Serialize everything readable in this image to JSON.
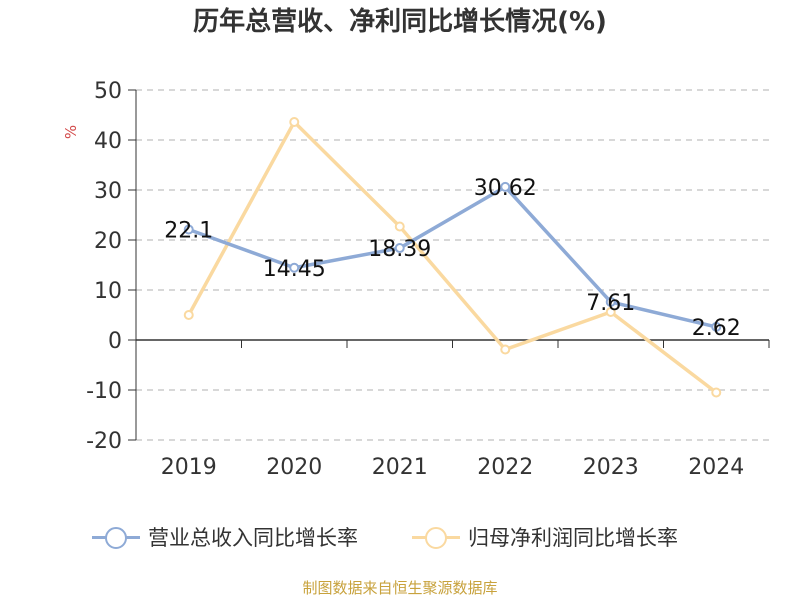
{
  "chart_data": {
    "type": "line",
    "title": "历年总营收、净利同比增长情况(%)",
    "ylabel": "%",
    "categories": [
      "2019",
      "2020",
      "2021",
      "2022",
      "2023",
      "2024"
    ],
    "ylim": [
      -20,
      50
    ],
    "yticks": [
      50,
      40,
      30,
      20,
      10,
      0,
      -10,
      -20
    ],
    "grid": true,
    "legend_position": "bottom",
    "series": [
      {
        "name": "营业总收入同比增长率",
        "values": [
          22.1,
          14.45,
          18.39,
          30.62,
          7.61,
          2.62
        ],
        "labels": [
          "22.1",
          "14.45",
          "18.39",
          "30.62",
          "7.61",
          "2.62"
        ],
        "color": "#8eaad6"
      },
      {
        "name": "归母净利润同比增长率",
        "values": [
          5.0,
          43.6,
          22.7,
          -1.9,
          5.6,
          -10.5
        ],
        "color": "#fad9a0"
      }
    ]
  },
  "source": "制图数据来自恒生聚源数据库",
  "colors": {
    "ylabel": "#d24a4a",
    "grid": "#cccccc",
    "axis": "#333333",
    "source": "#c8a23c"
  }
}
